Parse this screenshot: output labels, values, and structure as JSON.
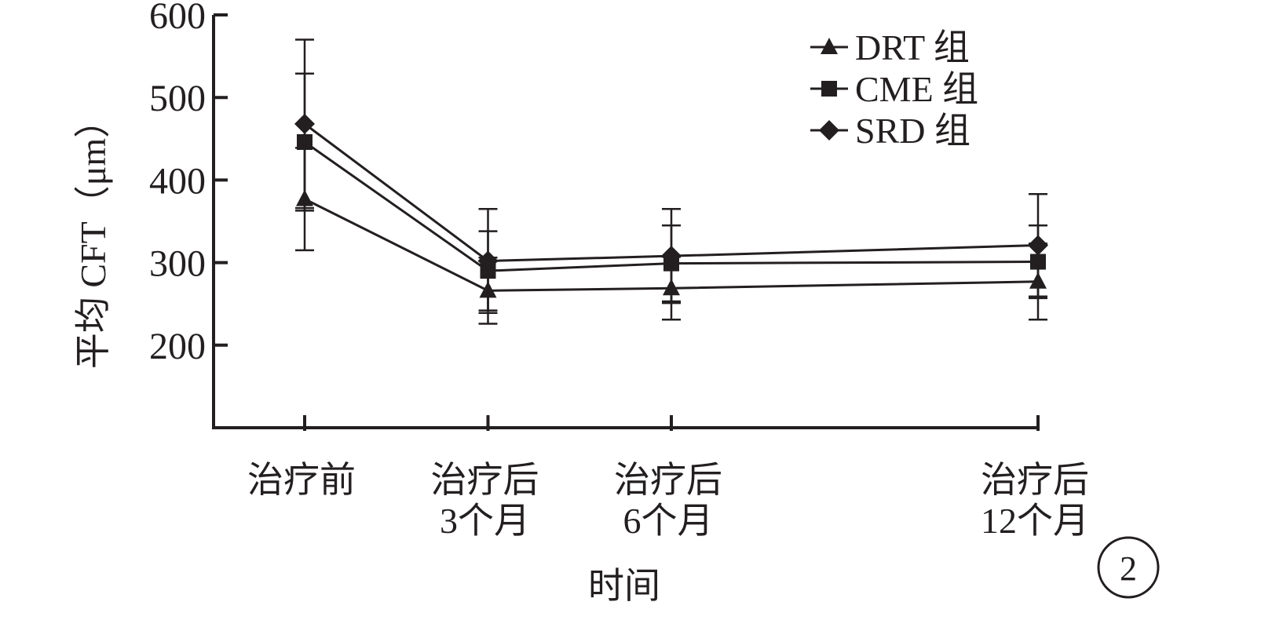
{
  "figure_number": "2",
  "chart_data": {
    "type": "line",
    "title": "",
    "xlabel": "时间",
    "ylabel": "平均 CFT（μm）",
    "categories": [
      [
        "治疗前"
      ],
      [
        "治疗后",
        "3个月"
      ],
      [
        "治疗后",
        "6个月"
      ],
      [
        "治疗后",
        "12个月"
      ]
    ],
    "x_positions": [
      0,
      1,
      2,
      4
    ],
    "ylim": [
      100,
      600
    ],
    "yticks": [
      200,
      300,
      400,
      500,
      600
    ],
    "legend_position": "top-right",
    "grid": false,
    "series": [
      {
        "name": "DRT 组",
        "marker": "triangle",
        "values": [
          377,
          266,
          269,
          277
        ],
        "error_low": [
          315,
          226,
          231,
          231
        ],
        "error_high": [
          439,
          306,
          307,
          323
        ]
      },
      {
        "name": "CME 组",
        "marker": "square",
        "values": [
          446,
          290,
          299,
          301
        ],
        "error_low": [
          363,
          242,
          253,
          257
        ],
        "error_high": [
          529,
          338,
          345,
          345
        ]
      },
      {
        "name": "SRD 组",
        "marker": "diamond",
        "values": [
          468,
          302,
          308,
          321
        ],
        "error_low": [
          366,
          239,
          251,
          259
        ],
        "error_high": [
          570,
          365,
          365,
          383
        ]
      }
    ]
  }
}
